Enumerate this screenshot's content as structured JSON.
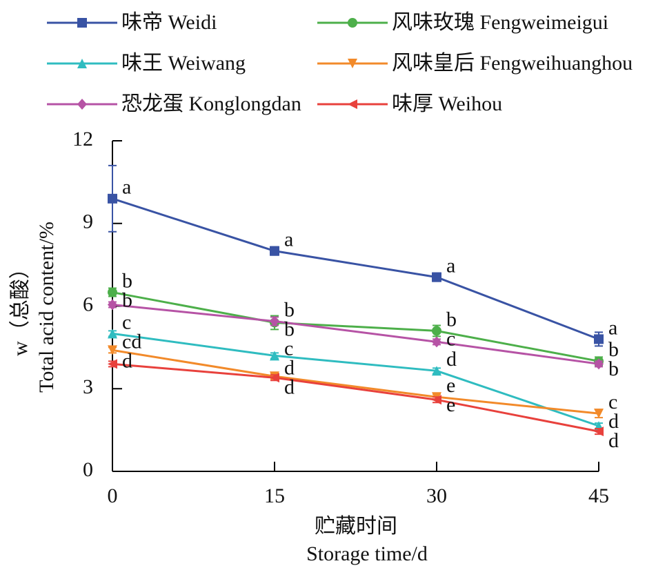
{
  "chart_data": {
    "type": "line",
    "x": [
      0,
      15,
      30,
      45
    ],
    "xlim": [
      0,
      45
    ],
    "xticks": [
      0,
      15,
      30,
      45
    ],
    "ylim": [
      0,
      12
    ],
    "yticks": [
      0,
      3,
      6,
      9,
      12
    ],
    "xlabel": [
      "贮藏时间",
      "Storage time/d"
    ],
    "ylabel": [
      "w（总酸）",
      "Total acid content/%"
    ],
    "series": [
      {
        "name": "味帝 Weidi",
        "color": "#3953a4",
        "marker": "square",
        "values": [
          9.9,
          8.0,
          7.05,
          4.8
        ],
        "errors": [
          1.2,
          0.15,
          0.15,
          0.25
        ],
        "labels": [
          "a",
          "a",
          "a",
          "a"
        ]
      },
      {
        "name": "风味玫瑰 Fengweimeigui",
        "color": "#4daf4a",
        "marker": "circle",
        "values": [
          6.5,
          5.4,
          5.1,
          4.0
        ],
        "errors": [
          0.15,
          0.25,
          0.2,
          0.15
        ],
        "labels": [
          "b",
          "b",
          "b",
          "b"
        ]
      },
      {
        "name": "味王 Weiwang",
        "color": "#2fbcc0",
        "marker": "triangle-up",
        "values": [
          5.0,
          4.2,
          3.65,
          1.65
        ],
        "errors": [
          0.1,
          0.1,
          0.1,
          0.1
        ],
        "labels": [
          "c",
          "c",
          "d",
          "d"
        ]
      },
      {
        "name": "风味皇后 Fengweihuanghou",
        "color": "#f28a2a",
        "marker": "triangle-down",
        "values": [
          4.4,
          3.45,
          2.7,
          2.1
        ],
        "errors": [
          0.1,
          0.1,
          0.1,
          0.15
        ],
        "labels": [
          "cd",
          "d",
          "e",
          "c"
        ]
      },
      {
        "name": "恐龙蛋 Konglongdan",
        "color": "#b653a5",
        "marker": "diamond",
        "values": [
          6.05,
          5.45,
          4.7,
          3.9
        ],
        "errors": [
          0.1,
          0.15,
          0.1,
          0.1
        ],
        "labels": [
          "b",
          "b",
          "c",
          "b"
        ]
      },
      {
        "name": "味厚 Weihou",
        "color": "#e8413c",
        "marker": "triangle-left",
        "values": [
          3.9,
          3.4,
          2.6,
          1.45
        ],
        "errors": [
          0.1,
          0.1,
          0.1,
          0.1
        ],
        "labels": [
          "d",
          "d",
          "e",
          "d"
        ]
      }
    ]
  }
}
